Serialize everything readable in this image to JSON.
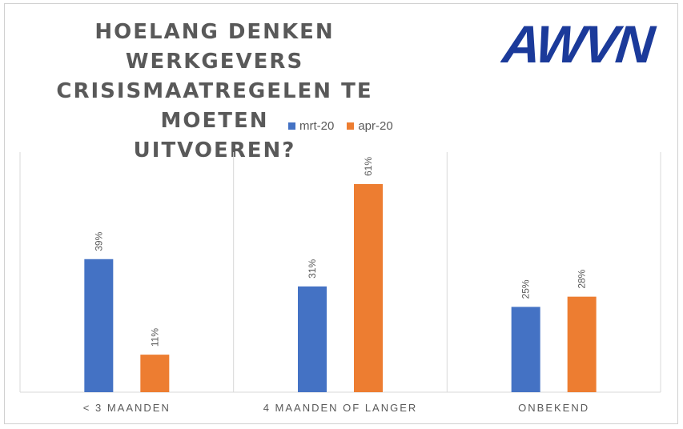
{
  "title": "HOELANG DENKEN WERKGEVERS\nCRISISMAATREGELEN TE MOETEN\nUITVOEREN?",
  "logo_text": "AWVN",
  "colors": {
    "accent_blue": "#4472C4",
    "accent_orange": "#ED7D31",
    "logo_blue": "#1B3A9A"
  },
  "chart_data": {
    "type": "bar",
    "title": "HOELANG DENKEN WERKGEVERS CRISISMAATREGELEN TE MOETEN UITVOEREN?",
    "categories": [
      "< 3 MAANDEN",
      "4 MAANDEN OF LANGER",
      "ONBEKEND"
    ],
    "series": [
      {
        "name": "mrt-20",
        "values": [
          39,
          31,
          25
        ],
        "labels": [
          "39%",
          "31%",
          "25%"
        ],
        "color": "#4472C4"
      },
      {
        "name": "apr-20",
        "values": [
          11,
          61,
          28
        ],
        "labels": [
          "11%",
          "61%",
          "28%"
        ],
        "color": "#ED7D31"
      }
    ],
    "xlabel": "",
    "ylabel": "",
    "ylim": [
      0,
      70
    ],
    "grid": false,
    "legend": "top-center",
    "category_separators": true
  }
}
